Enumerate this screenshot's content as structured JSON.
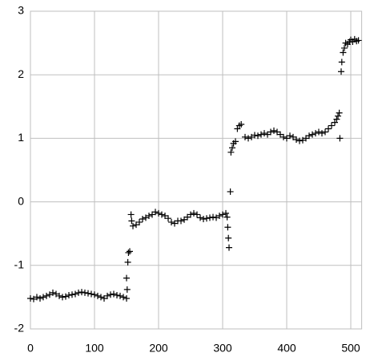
{
  "chart_data": {
    "type": "scatter",
    "marker": "plus",
    "color": "#000000",
    "grid": true,
    "xlim": [
      0,
      517
    ],
    "ylim": [
      -2,
      3
    ],
    "xticks": [
      0,
      100,
      200,
      300,
      400,
      500
    ],
    "yticks": [
      -2,
      -1,
      0,
      1,
      2,
      3
    ],
    "x": [
      0,
      5,
      10,
      15,
      20,
      25,
      30,
      35,
      40,
      45,
      50,
      55,
      60,
      65,
      70,
      75,
      80,
      85,
      90,
      95,
      100,
      105,
      110,
      115,
      120,
      125,
      130,
      135,
      140,
      145,
      150,
      150,
      151,
      152,
      153,
      155,
      157,
      158,
      160,
      165,
      170,
      175,
      180,
      185,
      190,
      195,
      200,
      205,
      210,
      215,
      220,
      225,
      230,
      235,
      240,
      245,
      250,
      255,
      260,
      265,
      270,
      275,
      280,
      285,
      290,
      295,
      300,
      305,
      307,
      308,
      309,
      310,
      312,
      313,
      315,
      317,
      320,
      323,
      326,
      329,
      335,
      340,
      345,
      350,
      355,
      360,
      365,
      370,
      375,
      380,
      385,
      390,
      395,
      400,
      405,
      410,
      415,
      420,
      425,
      430,
      435,
      440,
      445,
      450,
      455,
      460,
      465,
      470,
      475,
      478,
      480,
      482,
      483,
      485,
      486,
      488,
      490,
      492,
      495,
      498,
      500,
      503,
      506,
      509,
      512
    ],
    "y": [
      -1.52,
      -1.53,
      -1.5,
      -1.52,
      -1.5,
      -1.48,
      -1.46,
      -1.43,
      -1.45,
      -1.48,
      -1.5,
      -1.49,
      -1.47,
      -1.46,
      -1.45,
      -1.43,
      -1.42,
      -1.43,
      -1.44,
      -1.45,
      -1.46,
      -1.48,
      -1.5,
      -1.52,
      -1.48,
      -1.46,
      -1.45,
      -1.47,
      -1.48,
      -1.5,
      -1.52,
      -1.2,
      -1.38,
      -0.95,
      -0.8,
      -0.78,
      -0.2,
      -0.3,
      -0.38,
      -0.36,
      -0.32,
      -0.27,
      -0.25,
      -0.22,
      -0.2,
      -0.16,
      -0.18,
      -0.2,
      -0.22,
      -0.26,
      -0.32,
      -0.34,
      -0.3,
      -0.3,
      -0.28,
      -0.24,
      -0.2,
      -0.18,
      -0.2,
      -0.25,
      -0.27,
      -0.26,
      -0.25,
      -0.24,
      -0.25,
      -0.22,
      -0.2,
      -0.18,
      -0.24,
      -0.4,
      -0.57,
      -0.72,
      0.16,
      0.78,
      0.85,
      0.92,
      0.95,
      1.15,
      1.2,
      1.22,
      1.02,
      1.0,
      1.02,
      1.05,
      1.04,
      1.06,
      1.08,
      1.06,
      1.1,
      1.12,
      1.1,
      1.06,
      1.02,
      1.0,
      1.04,
      1.02,
      0.98,
      0.96,
      0.97,
      1.0,
      1.04,
      1.06,
      1.08,
      1.1,
      1.08,
      1.1,
      1.15,
      1.2,
      1.25,
      1.3,
      1.35,
      1.4,
      1.0,
      2.05,
      2.2,
      2.35,
      2.42,
      2.5,
      2.48,
      2.52,
      2.55,
      2.52,
      2.56,
      2.53,
      2.54
    ]
  }
}
